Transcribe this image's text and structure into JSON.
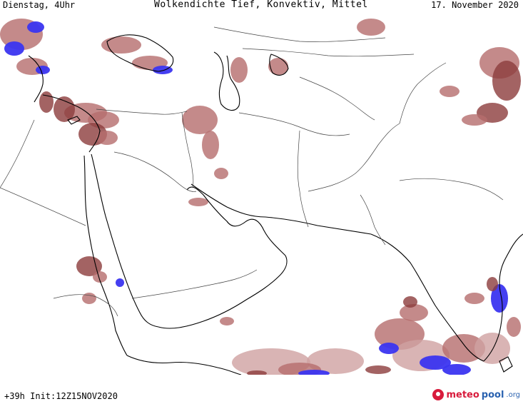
{
  "header": {
    "left": "Dienstag, 4Uhr",
    "title": "Wolkendichte   Tief, Konvektiv, Mittel",
    "date": "17. November 2020"
  },
  "footer": {
    "run": "+39h Init:12Z15NOV2020"
  },
  "logo": {
    "part1": "meteo",
    "part2": "pool",
    "part3": ".org",
    "icon": "meteopool-logo-icon"
  },
  "colors": {
    "cloud_light": "#cfa1a1",
    "cloud_medium": "#b56d6d",
    "cloud_dark": "#8c3c3c",
    "cloud_high": "#3b35f0",
    "coastline": "#000000",
    "borders": "#444444"
  }
}
